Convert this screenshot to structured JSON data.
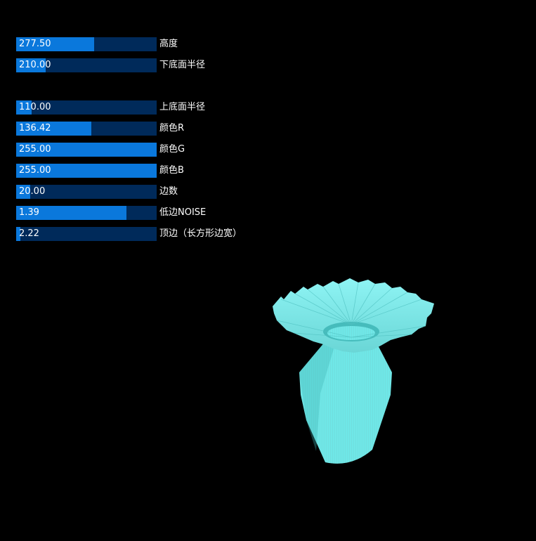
{
  "sliders": [
    {
      "value": "277.50",
      "label": "高度",
      "fill": 0.555
    },
    {
      "value": "210.00",
      "label": "下底面半径",
      "fill": 0.21
    },
    {
      "value": "110.00",
      "label": "上底面半径",
      "fill": 0.11
    },
    {
      "value": "136.42",
      "label": "颜色R",
      "fill": 0.535
    },
    {
      "value": "255.00",
      "label": "颜色G",
      "fill": 1.0
    },
    {
      "value": "255.00",
      "label": "颜色B",
      "fill": 1.0
    },
    {
      "value": "20.00",
      "label": "边数",
      "fill": 0.1
    },
    {
      "value": "1.39",
      "label": "低边NOISE",
      "fill": 0.785
    },
    {
      "value": "2.22",
      "label": "顶边（长方形边宽）",
      "fill": 0.03
    }
  ],
  "colors": {
    "track": "#002a5a",
    "fill": "#0a78dc",
    "model": "#88ffff"
  },
  "model": {
    "icon": "vase-3d-model-icon"
  }
}
